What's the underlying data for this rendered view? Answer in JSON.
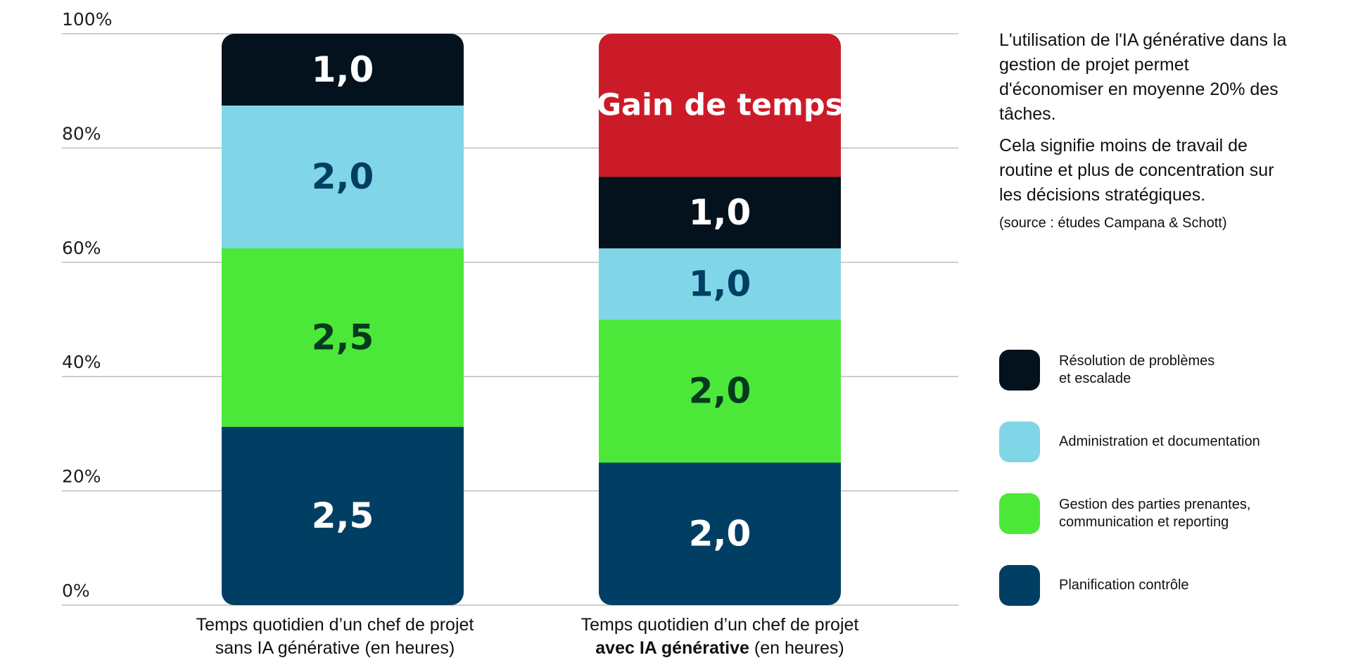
{
  "chart_data": {
    "type": "bar",
    "stacked": true,
    "yaxis": {
      "ticks": [
        "0%",
        "20%",
        "40%",
        "60%",
        "80%",
        "100%"
      ],
      "range": [
        0,
        100
      ],
      "grid": true
    },
    "categories": [
      {
        "line1": "Temps quotidien d’un chef de projet",
        "line2_bold": "",
        "line2": "sans IA générative (en heures)"
      },
      {
        "line1": "Temps quotidien d’un chef de projet",
        "line2_bold": "avec IA générative",
        "line2": " (en heures)"
      }
    ],
    "series": [
      {
        "name": "Planification contrôle",
        "color": "#003f63",
        "text_color": "#ffffff",
        "values": [
          2.5,
          2.0
        ],
        "labels": [
          "2,5",
          "2,0"
        ]
      },
      {
        "name": "Gestion des parties prenantes,\ncommunication et reporting",
        "color": "#4be83a",
        "text_color": "#063a1f",
        "values": [
          2.5,
          2.0
        ],
        "labels": [
          "2,5",
          "2,0"
        ]
      },
      {
        "name": "Administration et documentation",
        "color": "#80d6e6",
        "text_color": "#003f63",
        "values": [
          2.0,
          1.0
        ],
        "labels": [
          "2,0",
          "1,0"
        ]
      },
      {
        "name": "Résolution de problèmes\net escalade",
        "color": "#03121d",
        "text_color": "#ffffff",
        "values": [
          1.0,
          1.0
        ],
        "labels": [
          "1,0",
          "1,0"
        ]
      }
    ],
    "gain": {
      "label": "Gain de temps",
      "color": "#cc1b28",
      "values": [
        0,
        2.0
      ]
    },
    "legend_position": "right"
  },
  "note": {
    "paragraph1": "L'utilisation de l'IA générative dans la gestion de projet permet d'économiser en moyenne 20% des tâches.",
    "paragraph2": "Cela signifie moins de travail de routine et plus de concentration sur les décisions stratégiques.",
    "source": "(source : études Campana & Schott)"
  }
}
